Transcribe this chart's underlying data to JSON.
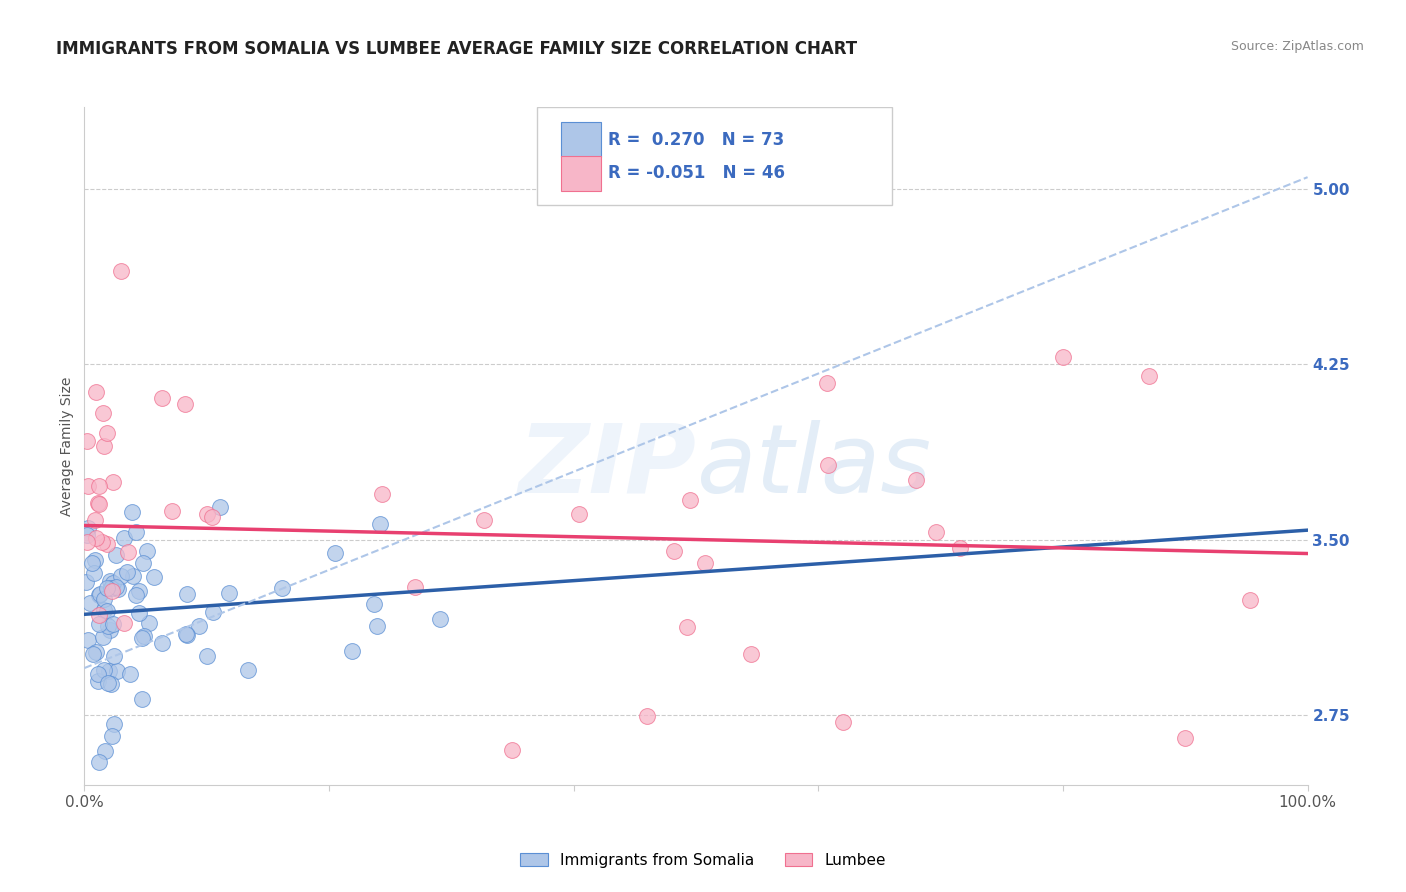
{
  "title": "IMMIGRANTS FROM SOMALIA VS LUMBEE AVERAGE FAMILY SIZE CORRELATION CHART",
  "source": "Source: ZipAtlas.com",
  "ylabel": "Average Family Size",
  "xlim": [
    0.0,
    100.0
  ],
  "ylim": [
    2.45,
    5.35
  ],
  "yticks": [
    2.75,
    3.5,
    4.25,
    5.0
  ],
  "xticks": [
    0.0,
    20.0,
    40.0,
    60.0,
    80.0,
    100.0
  ],
  "xtick_labels": [
    "0.0%",
    "",
    "",
    "",
    "",
    "100.0%"
  ],
  "ytick_color": "#3b6abf",
  "R_somalia": 0.27,
  "N_somalia": 73,
  "R_lumbee": -0.051,
  "N_lumbee": 46,
  "somalia_color": "#aec6e8",
  "lumbee_color": "#f7b6c8",
  "somalia_edge_color": "#5b8fd4",
  "lumbee_edge_color": "#f07090",
  "somalia_line_color": "#2c5fa8",
  "lumbee_line_color": "#e84070",
  "dashed_line_color": "#aec6e8",
  "background_color": "#ffffff",
  "grid_color": "#cccccc",
  "title_fontsize": 12,
  "axis_label_fontsize": 10,
  "tick_fontsize": 11,
  "legend_color": "#3b6abf",
  "soma_trend_x0": 0.0,
  "soma_trend_y0": 3.18,
  "soma_trend_x1": 100.0,
  "soma_trend_y1": 3.54,
  "lumb_trend_x0": 0.0,
  "lumb_trend_y0": 3.56,
  "lumb_trend_x1": 100.0,
  "lumb_trend_y1": 3.44,
  "dash_trend_x0": 0.0,
  "dash_trend_y0": 2.95,
  "dash_trend_x1": 100.0,
  "dash_trend_y1": 5.05
}
